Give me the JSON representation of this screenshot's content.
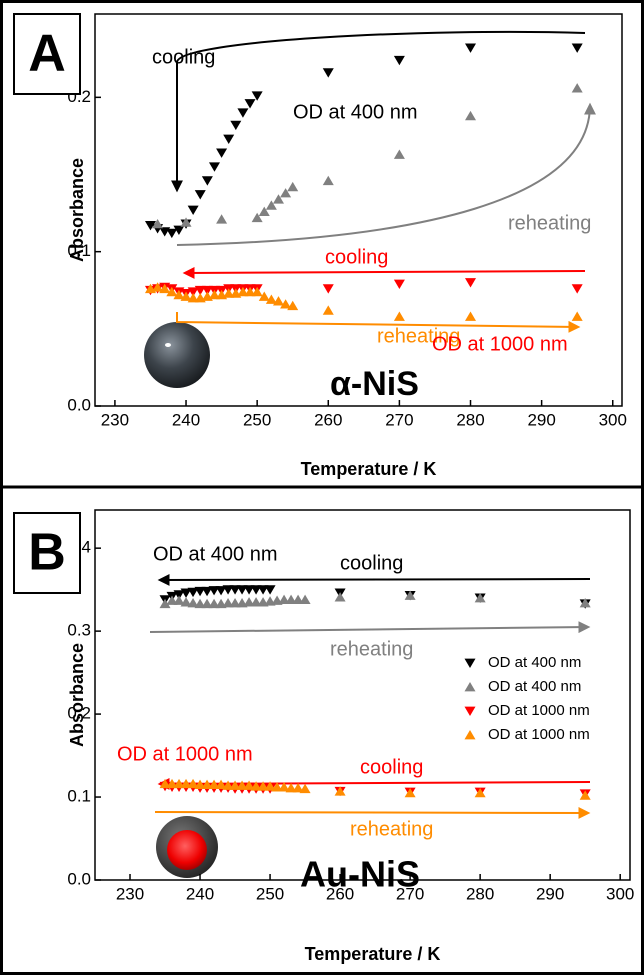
{
  "chart_data": [
    {
      "type": "scatter",
      "panel_label": "A",
      "xlabel": "Temperature / K",
      "ylabel": "Absorbance",
      "xlim": [
        227.2,
        301.3
      ],
      "ylim": [
        0,
        0.254
      ],
      "xticks": [
        230,
        240,
        250,
        260,
        270,
        280,
        290,
        300
      ],
      "yticks": [
        {
          "value": 0,
          "label": "0.0"
        },
        0.1,
        0.2
      ],
      "annotations": [
        {
          "text": "cooling",
          "color": "#000000"
        },
        {
          "text": "OD at 400 nm",
          "color": "#000000"
        },
        {
          "text": "reheating",
          "color": "#808080"
        },
        {
          "text": "cooling",
          "color": "#ff0000"
        },
        {
          "text": "reheating",
          "color": "#ff8c00"
        },
        {
          "text": "OD at 1000 nm",
          "color": "#ff0000"
        },
        {
          "text": "α-NiS",
          "color": "#000000"
        }
      ],
      "series": [
        {
          "color": "#000000",
          "marker": "down",
          "x": [
            235,
            236,
            237,
            238,
            239,
            240,
            241,
            242,
            243,
            244,
            245,
            246,
            247,
            248,
            249,
            250,
            260,
            270,
            280,
            295
          ],
          "values": [
            0.117,
            0.115,
            0.113,
            0.112,
            0.114,
            0.118,
            0.127,
            0.137,
            0.146,
            0.155,
            0.164,
            0.173,
            0.182,
            0.19,
            0.196,
            0.201,
            0.216,
            0.224,
            0.232,
            0.232
          ]
        },
        {
          "color": "#808080",
          "marker": "up",
          "x": [
            236,
            240,
            245,
            250,
            251,
            252,
            253,
            254,
            255,
            260,
            270,
            280,
            295
          ],
          "values": [
            0.118,
            0.119,
            0.121,
            0.122,
            0.126,
            0.13,
            0.134,
            0.138,
            0.142,
            0.146,
            0.163,
            0.188,
            0.206
          ]
        },
        {
          "color": "#ff0000",
          "marker": "down",
          "x": [
            235,
            236,
            237,
            238,
            239,
            240,
            241,
            242,
            243,
            244,
            245,
            246,
            247,
            248,
            249,
            250,
            260,
            270,
            280,
            295
          ],
          "values": [
            0.075,
            0.076,
            0.077,
            0.076,
            0.074,
            0.073,
            0.074,
            0.075,
            0.075,
            0.075,
            0.075,
            0.076,
            0.076,
            0.076,
            0.076,
            0.076,
            0.076,
            0.079,
            0.08,
            0.076
          ]
        },
        {
          "color": "#ff8c00",
          "marker": "up",
          "x": [
            235,
            236,
            237,
            238,
            239,
            240,
            241,
            242,
            243,
            244,
            245,
            246,
            247,
            248,
            249,
            250,
            251,
            252,
            253,
            254,
            255,
            260,
            270,
            280,
            295
          ],
          "values": [
            0.076,
            0.077,
            0.076,
            0.074,
            0.072,
            0.071,
            0.07,
            0.07,
            0.071,
            0.072,
            0.072,
            0.073,
            0.073,
            0.074,
            0.074,
            0.074,
            0.071,
            0.069,
            0.068,
            0.066,
            0.065,
            0.062,
            0.058,
            0.058,
            0.058
          ]
        }
      ]
    },
    {
      "type": "scatter",
      "panel_label": "B",
      "xlabel": "Temperature / K",
      "ylabel": "Absorbance",
      "xlim": [
        225,
        301.4
      ],
      "ylim": [
        0,
        0.446
      ],
      "xticks": [
        230,
        240,
        250,
        260,
        270,
        280,
        290,
        300
      ],
      "yticks": [
        {
          "value": 0,
          "label": "0.0"
        },
        0.1,
        0.2,
        0.3,
        0.4
      ],
      "legend": "right",
      "annotations": [
        {
          "text": "OD at 400 nm",
          "color": "#000000"
        },
        {
          "text": "cooling",
          "color": "#000000"
        },
        {
          "text": "reheating",
          "color": "#808080"
        },
        {
          "text": "OD at 1000 nm",
          "color": "#ff0000"
        },
        {
          "text": "cooling",
          "color": "#ff0000"
        },
        {
          "text": "reheating",
          "color": "#ff8c00"
        },
        {
          "text": "Au-NiS",
          "color": "#000000"
        }
      ],
      "series": [
        {
          "name": "OD at 400 nm",
          "color": "#000000",
          "marker": "down",
          "x": [
            235,
            236,
            237,
            238,
            239,
            240,
            241,
            242,
            243,
            244,
            245,
            246,
            247,
            248,
            249,
            250,
            260,
            270,
            280,
            295
          ],
          "values": [
            0.338,
            0.342,
            0.344,
            0.346,
            0.347,
            0.348,
            0.348,
            0.349,
            0.349,
            0.35,
            0.35,
            0.35,
            0.35,
            0.35,
            0.35,
            0.35,
            0.346,
            0.343,
            0.34,
            0.333
          ]
        },
        {
          "name": "OD at 400 nm",
          "color": "#808080",
          "marker": "up",
          "x": [
            235,
            236,
            237,
            238,
            239,
            240,
            241,
            242,
            243,
            244,
            245,
            246,
            247,
            248,
            249,
            250,
            251,
            252,
            253,
            254,
            255,
            260,
            270,
            280,
            295
          ],
          "values": [
            0.333,
            0.337,
            0.337,
            0.335,
            0.334,
            0.333,
            0.333,
            0.333,
            0.333,
            0.334,
            0.334,
            0.334,
            0.335,
            0.335,
            0.335,
            0.336,
            0.337,
            0.338,
            0.338,
            0.338,
            0.338,
            0.341,
            0.343,
            0.34,
            0.334
          ]
        },
        {
          "name": "OD at 1000 nm",
          "color": "#ff0000",
          "marker": "down",
          "x": [
            235,
            236,
            237,
            238,
            239,
            240,
            241,
            242,
            243,
            244,
            245,
            246,
            247,
            248,
            249,
            250,
            260,
            270,
            280,
            295
          ],
          "values": [
            0.113,
            0.112,
            0.112,
            0.112,
            0.112,
            0.111,
            0.111,
            0.111,
            0.111,
            0.111,
            0.11,
            0.11,
            0.11,
            0.11,
            0.11,
            0.11,
            0.107,
            0.106,
            0.106,
            0.104
          ]
        },
        {
          "name": "OD at 1000 nm",
          "color": "#ff8c00",
          "marker": "up",
          "x": [
            235,
            236,
            237,
            238,
            239,
            240,
            241,
            242,
            243,
            244,
            245,
            246,
            247,
            248,
            249,
            250,
            251,
            252,
            253,
            254,
            255,
            260,
            270,
            280,
            295
          ],
          "values": [
            0.116,
            0.116,
            0.116,
            0.116,
            0.116,
            0.115,
            0.115,
            0.115,
            0.115,
            0.114,
            0.114,
            0.114,
            0.114,
            0.113,
            0.113,
            0.113,
            0.112,
            0.112,
            0.111,
            0.111,
            0.11,
            0.107,
            0.105,
            0.105,
            0.102
          ]
        }
      ]
    }
  ]
}
